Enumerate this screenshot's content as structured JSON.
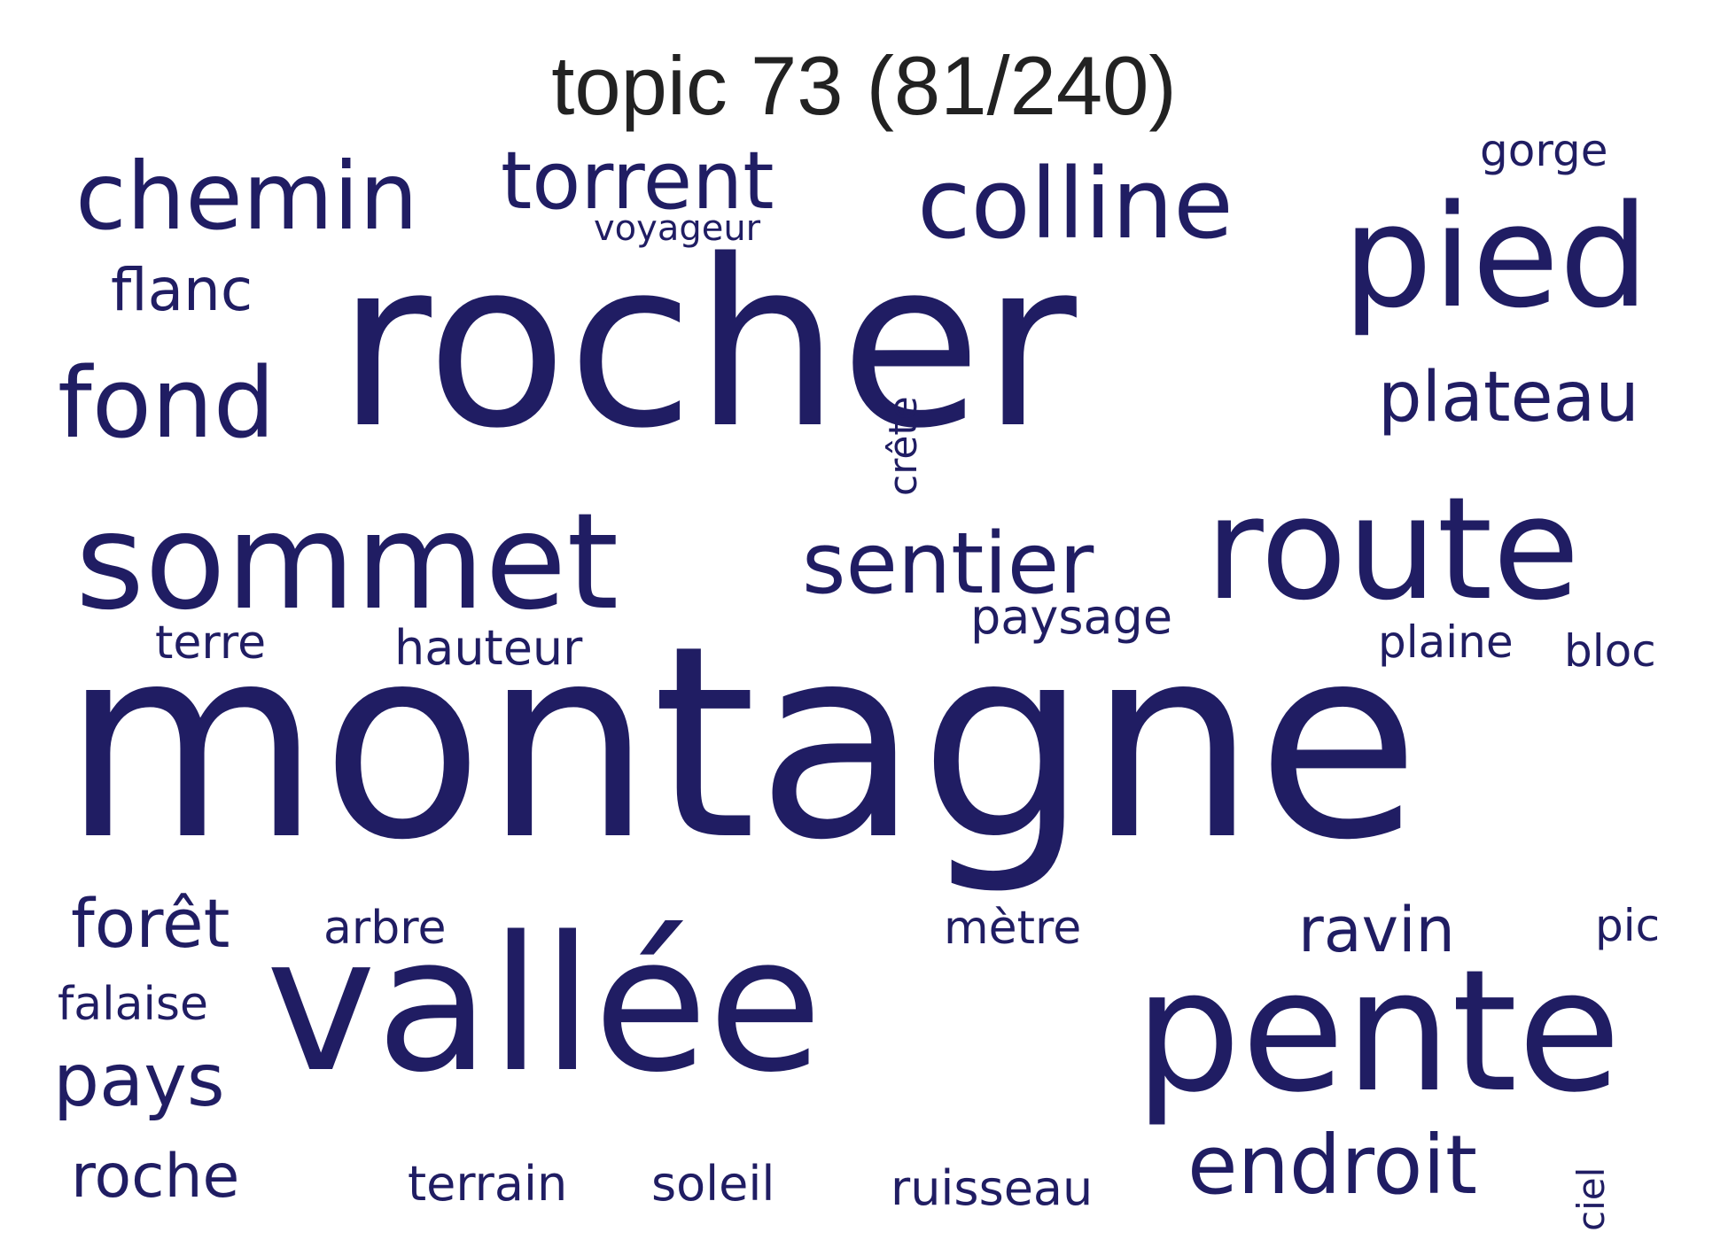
{
  "title": "topic 73 (81/240)",
  "colors": {
    "word": "#201d63",
    "title": "#222222",
    "background": "#ffffff"
  },
  "words": {
    "montagne": "montagne",
    "rocher": "rocher",
    "vallee": "vallée",
    "pente": "pente",
    "route": "route",
    "sommet": "sommet",
    "pied": "pied",
    "sentier": "sentier",
    "colline": "colline",
    "chemin": "chemin",
    "torrent": "torrent",
    "fond": "fond",
    "endroit": "endroit",
    "plateau": "plateau",
    "pays": "pays",
    "foret": "forêt",
    "ravin": "ravin",
    "roche": "roche",
    "flanc": "flanc",
    "hauteur": "hauteur",
    "paysage": "paysage",
    "terrain": "terrain",
    "plaine": "plaine",
    "soleil": "soleil",
    "ruisseau": "ruisseau",
    "falaise": "falaise",
    "arbre": "arbre",
    "metre": "mètre",
    "terre": "terre",
    "bloc": "bloc",
    "gorge": "gorge",
    "crete": "crête",
    "voyageur": "voyageur",
    "pic": "pic",
    "ciel": "ciel"
  }
}
